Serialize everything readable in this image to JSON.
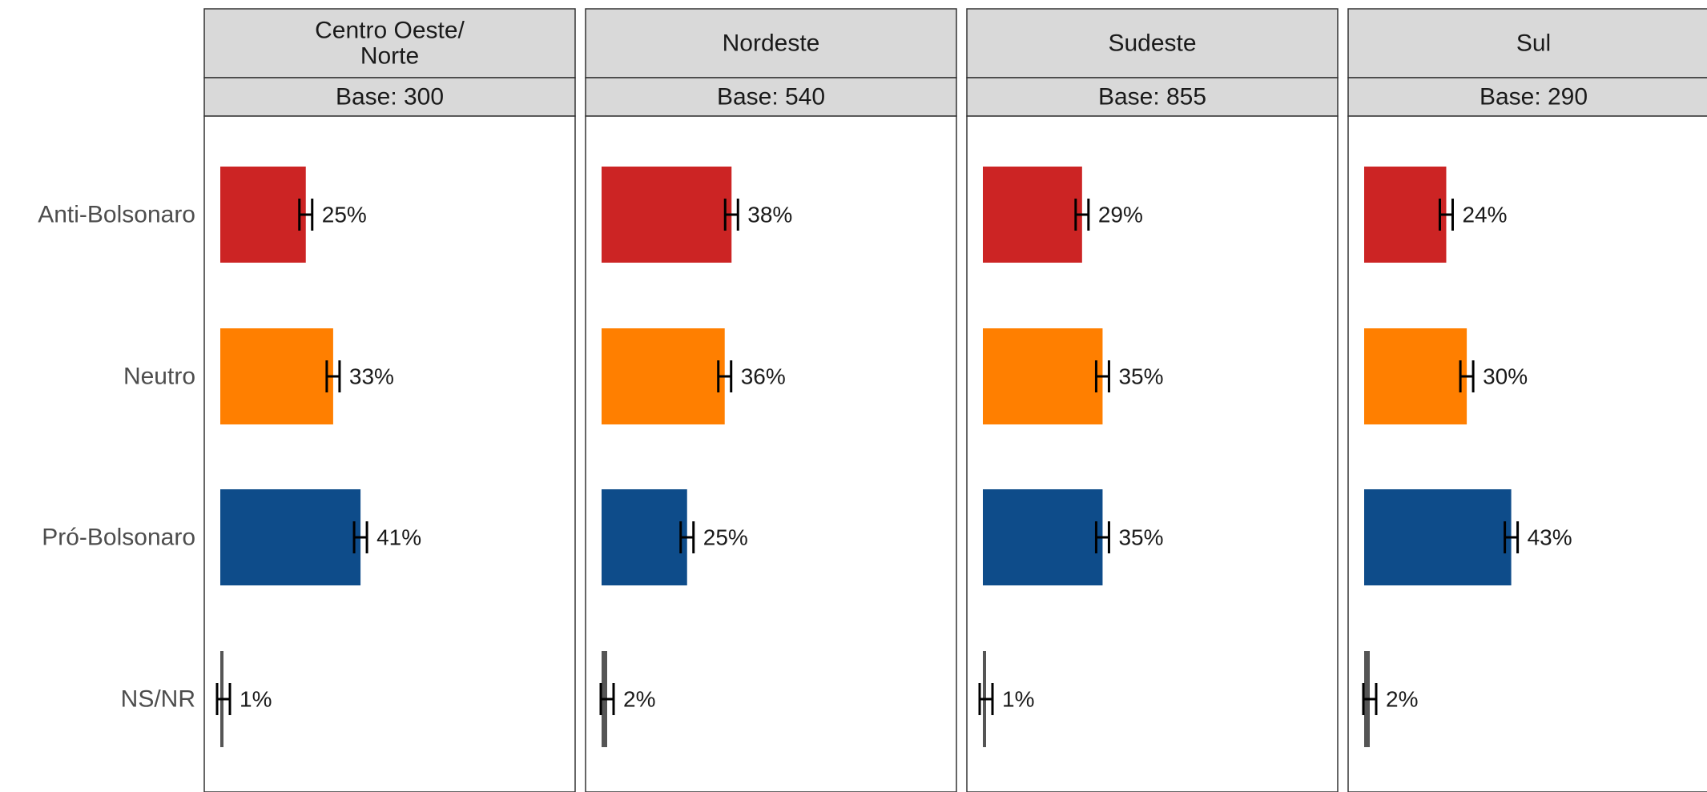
{
  "chart_data": {
    "type": "bar",
    "orientation": "horizontal",
    "faceted": true,
    "categories": [
      "Anti-Bolsonaro",
      "Neutro",
      "Pró-Bolsonaro",
      "NS/NR"
    ],
    "category_colors": [
      "#cc2424",
      "#ff7f00",
      "#0e4c8a",
      "#555555"
    ],
    "xlim": [
      0,
      100
    ],
    "value_format": "percent",
    "grid": false,
    "legend": "none",
    "error_bars": true,
    "panels": [
      {
        "title": "Centro Oeste/\nNorte",
        "base_label": "Base: 300",
        "values": [
          25,
          33,
          41,
          1
        ],
        "labels": [
          "25%",
          "33%",
          "41%",
          "1%"
        ]
      },
      {
        "title": "Nordeste",
        "base_label": "Base: 540",
        "values": [
          38,
          36,
          25,
          2
        ],
        "labels": [
          "38%",
          "36%",
          "25%",
          "2%"
        ]
      },
      {
        "title": "Sudeste",
        "base_label": "Base: 855",
        "values": [
          29,
          35,
          35,
          1
        ],
        "labels": [
          "29%",
          "35%",
          "35%",
          "1%"
        ]
      },
      {
        "title": "Sul",
        "base_label": "Base: 290",
        "values": [
          24,
          30,
          43,
          2
        ],
        "labels": [
          "24%",
          "30%",
          "43%",
          "2%"
        ]
      }
    ]
  }
}
